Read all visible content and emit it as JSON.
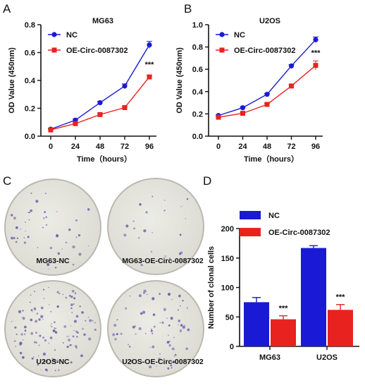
{
  "panel_labels": [
    "A",
    "B",
    "C",
    "D"
  ],
  "colors": {
    "nc": "#1a1ad6",
    "oe": "#e8231f",
    "dish_fill": "#dcdcd4",
    "dish_edge": "#b9b9b1",
    "colony": "#6a5fa6"
  },
  "chart_data": [
    {
      "type": "line",
      "title": "MG63",
      "xlabel": "Time（hours）",
      "ylabel": "OD Value (450nm)",
      "x": [
        0,
        24,
        48,
        72,
        96
      ],
      "xticks": [
        "0",
        "24",
        "48",
        "72",
        "96"
      ],
      "ylim": [
        0,
        0.8
      ],
      "yticks": [
        "0.0",
        "0.2",
        "0.4",
        "0.6",
        "0.8"
      ],
      "legend_position": "top-left",
      "series": [
        {
          "name": "NC",
          "marker": "circle",
          "values": [
            0.05,
            0.115,
            0.24,
            0.36,
            0.655
          ],
          "errors": [
            0.005,
            0.008,
            0.01,
            0.015,
            0.025
          ]
        },
        {
          "name": "OE-Circ-0087302",
          "marker": "square",
          "values": [
            0.045,
            0.09,
            0.155,
            0.205,
            0.425
          ],
          "errors": [
            0.005,
            0.006,
            0.008,
            0.01,
            0.012
          ]
        }
      ],
      "annotation": "***"
    },
    {
      "type": "line",
      "title": "U2OS",
      "xlabel": "Time（hours）",
      "ylabel": "OD Value (450nm)",
      "x": [
        0,
        24,
        48,
        72,
        96
      ],
      "xticks": [
        "0",
        "24",
        "48",
        "72",
        "96"
      ],
      "ylim": [
        0,
        1.0
      ],
      "yticks": [
        "0.0",
        "0.2",
        "0.4",
        "0.6",
        "0.8",
        "1.0"
      ],
      "legend_position": "top-left",
      "series": [
        {
          "name": "NC",
          "marker": "circle",
          "values": [
            0.185,
            0.255,
            0.375,
            0.63,
            0.865
          ],
          "errors": [
            0.008,
            0.01,
            0.01,
            0.012,
            0.025
          ]
        },
        {
          "name": "OE-Circ-0087302",
          "marker": "square",
          "values": [
            0.17,
            0.205,
            0.285,
            0.45,
            0.635
          ],
          "errors": [
            0.008,
            0.008,
            0.01,
            0.012,
            0.04
          ]
        }
      ],
      "annotation": "***"
    },
    {
      "type": "bar",
      "title": "",
      "xlabel": "",
      "ylabel": "Number of clonal cells",
      "categories": [
        "MG63",
        "U2OS"
      ],
      "ylim": [
        0,
        200
      ],
      "yticks": [
        "0",
        "50",
        "100",
        "150",
        "200"
      ],
      "legend_position": "top-left",
      "series": [
        {
          "name": "NC",
          "values": [
            75,
            167
          ],
          "errors": [
            8,
            4
          ]
        },
        {
          "name": "OE-Circ-0087302",
          "values": [
            46,
            62
          ],
          "errors": [
            6,
            9
          ]
        }
      ],
      "annotations": [
        "***",
        "***"
      ]
    }
  ],
  "dishes": [
    {
      "label": "MG63-NC",
      "density": 45
    },
    {
      "label": "MG63-OE-Circ-0087302",
      "density": 22
    },
    {
      "label": "U2OS-NC",
      "density": 120
    },
    {
      "label": "U2OS-OE-Circ-0087302",
      "density": 70
    }
  ]
}
